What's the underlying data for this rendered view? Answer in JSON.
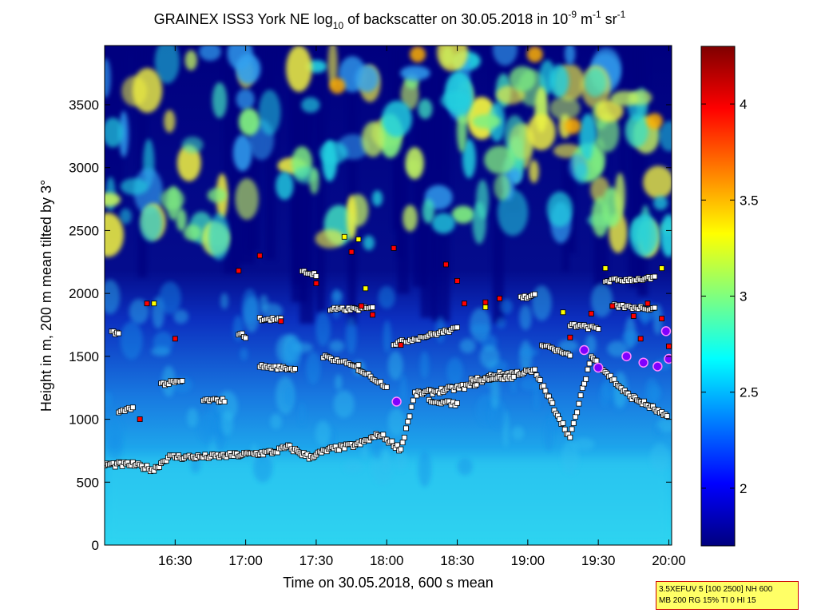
{
  "chart_data": {
    "type": "heatmap",
    "title": "GRAINEX ISS3 York NE log",
    "title_sub": "10",
    "title_mid": " of backscatter on 30.05.2018 in 10",
    "title_exp1": "-9",
    "title_unit1": " m",
    "title_exp2": "-1",
    "title_unit2": " sr",
    "title_exp3": "-1",
    "xlabel": "Time on 30.05.2018, 600 s mean",
    "ylabel": "Height in m, 200 m mean tilted by 3°",
    "x_ticks": [
      "16:30",
      "17:00",
      "17:30",
      "18:00",
      "18:30",
      "19:00",
      "19:30",
      "20:00"
    ],
    "x_tick_hours": [
      16.5,
      17.0,
      17.5,
      18.0,
      18.5,
      19.0,
      19.5,
      20.0
    ],
    "xlim_hours": [
      16.0,
      20.02
    ],
    "y_ticks": [
      "0",
      "500",
      "1000",
      "1500",
      "2000",
      "2500",
      "3000",
      "3500"
    ],
    "y_tick_values": [
      0,
      500,
      1000,
      1500,
      2000,
      2500,
      3000,
      3500
    ],
    "ylim": [
      0,
      3970
    ],
    "colorbar": {
      "ticks": [
        "2",
        "2.5",
        "3",
        "3.5",
        "4"
      ],
      "tick_values": [
        2.0,
        2.5,
        3.0,
        3.5,
        4.0
      ],
      "range": [
        1.7,
        4.3
      ],
      "colormap": [
        "#00007f",
        "#0000ff",
        "#007fff",
        "#00ffff",
        "#7fff7f",
        "#ffff00",
        "#ff7f00",
        "#ff0000",
        "#7f0000"
      ]
    },
    "layer_marker_colors": {
      "first_layer": "#ffffff",
      "second_layer": "#ff0000",
      "third_layer": "#ffff00",
      "cloud": "#7f00ff"
    }
  },
  "info_box": {
    "line1": "3.5XEFUV 5 [100 2500] NH 600",
    "line2": "MB 200 RG 15% TI 0 HI 15"
  }
}
